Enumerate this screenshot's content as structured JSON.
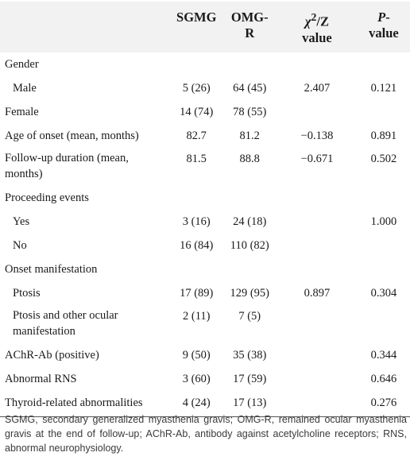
{
  "table": {
    "headers": {
      "col0": "",
      "col1": "SGMG",
      "col2_line1": "OMG-",
      "col2_line2": "R",
      "col3_chi": "χ",
      "col3_sup": "2",
      "col3_rest": "/Z",
      "col3_line2": "value",
      "col4_p": "P",
      "col4_dash": "-",
      "col4_line2": "value"
    },
    "rows": [
      {
        "label": "Gender",
        "sgmg": "",
        "omgr": "",
        "stat": "",
        "p": ""
      },
      {
        "label": "Male",
        "sgmg": "5 (26)",
        "omgr": "64 (45)",
        "stat": "2.407",
        "p": "0.121"
      },
      {
        "label": "Female",
        "sgmg": "14 (74)",
        "omgr": "78 (55)",
        "stat": "",
        "p": ""
      },
      {
        "label": "Age of onset (mean, months)",
        "sgmg": "82.7",
        "omgr": "81.2",
        "stat": "−0.138",
        "p": "0.891"
      },
      {
        "label_line1": "Follow-up duration (mean,",
        "label_line2": "months)",
        "sgmg": "81.5",
        "omgr": "88.8",
        "stat": "−0.671",
        "p": "0.502"
      },
      {
        "label": "Proceeding events",
        "sgmg": "",
        "omgr": "",
        "stat": "",
        "p": ""
      },
      {
        "label": "Yes",
        "sgmg": "3 (16)",
        "omgr": "24 (18)",
        "stat": "",
        "p": "1.000"
      },
      {
        "label": "No",
        "sgmg": "16 (84)",
        "omgr": "110 (82)",
        "stat": "",
        "p": ""
      },
      {
        "label": "Onset manifestation",
        "sgmg": "",
        "omgr": "",
        "stat": "",
        "p": ""
      },
      {
        "label": "Ptosis",
        "sgmg": "17 (89)",
        "omgr": "129 (95)",
        "stat": "0.897",
        "p": "0.304"
      },
      {
        "label_line1": "Ptosis and other ocular",
        "label_line2": "manifestation",
        "sgmg": "2 (11)",
        "omgr": "7 (5)",
        "stat": "",
        "p": ""
      },
      {
        "label": "AChR-Ab (positive)",
        "sgmg": "9 (50)",
        "omgr": "35 (38)",
        "stat": "",
        "p": "0.344"
      },
      {
        "label": "Abnormal RNS",
        "sgmg": "3 (60)",
        "omgr": "17 (59)",
        "stat": "",
        "p": "0.646"
      },
      {
        "label": "Thyroid-related abnormalities",
        "sgmg": "4 (24)",
        "omgr": "17 (13)",
        "stat": "",
        "p": "0.276"
      }
    ]
  },
  "footnote": "SGMG, secondary generalized myasthenia gravis; OMG-R, remained ocular myasthenia gravis at the end of follow-up; AChR-Ab, antibody against acetylcholine receptors; RNS, abnormal neurophysiology."
}
